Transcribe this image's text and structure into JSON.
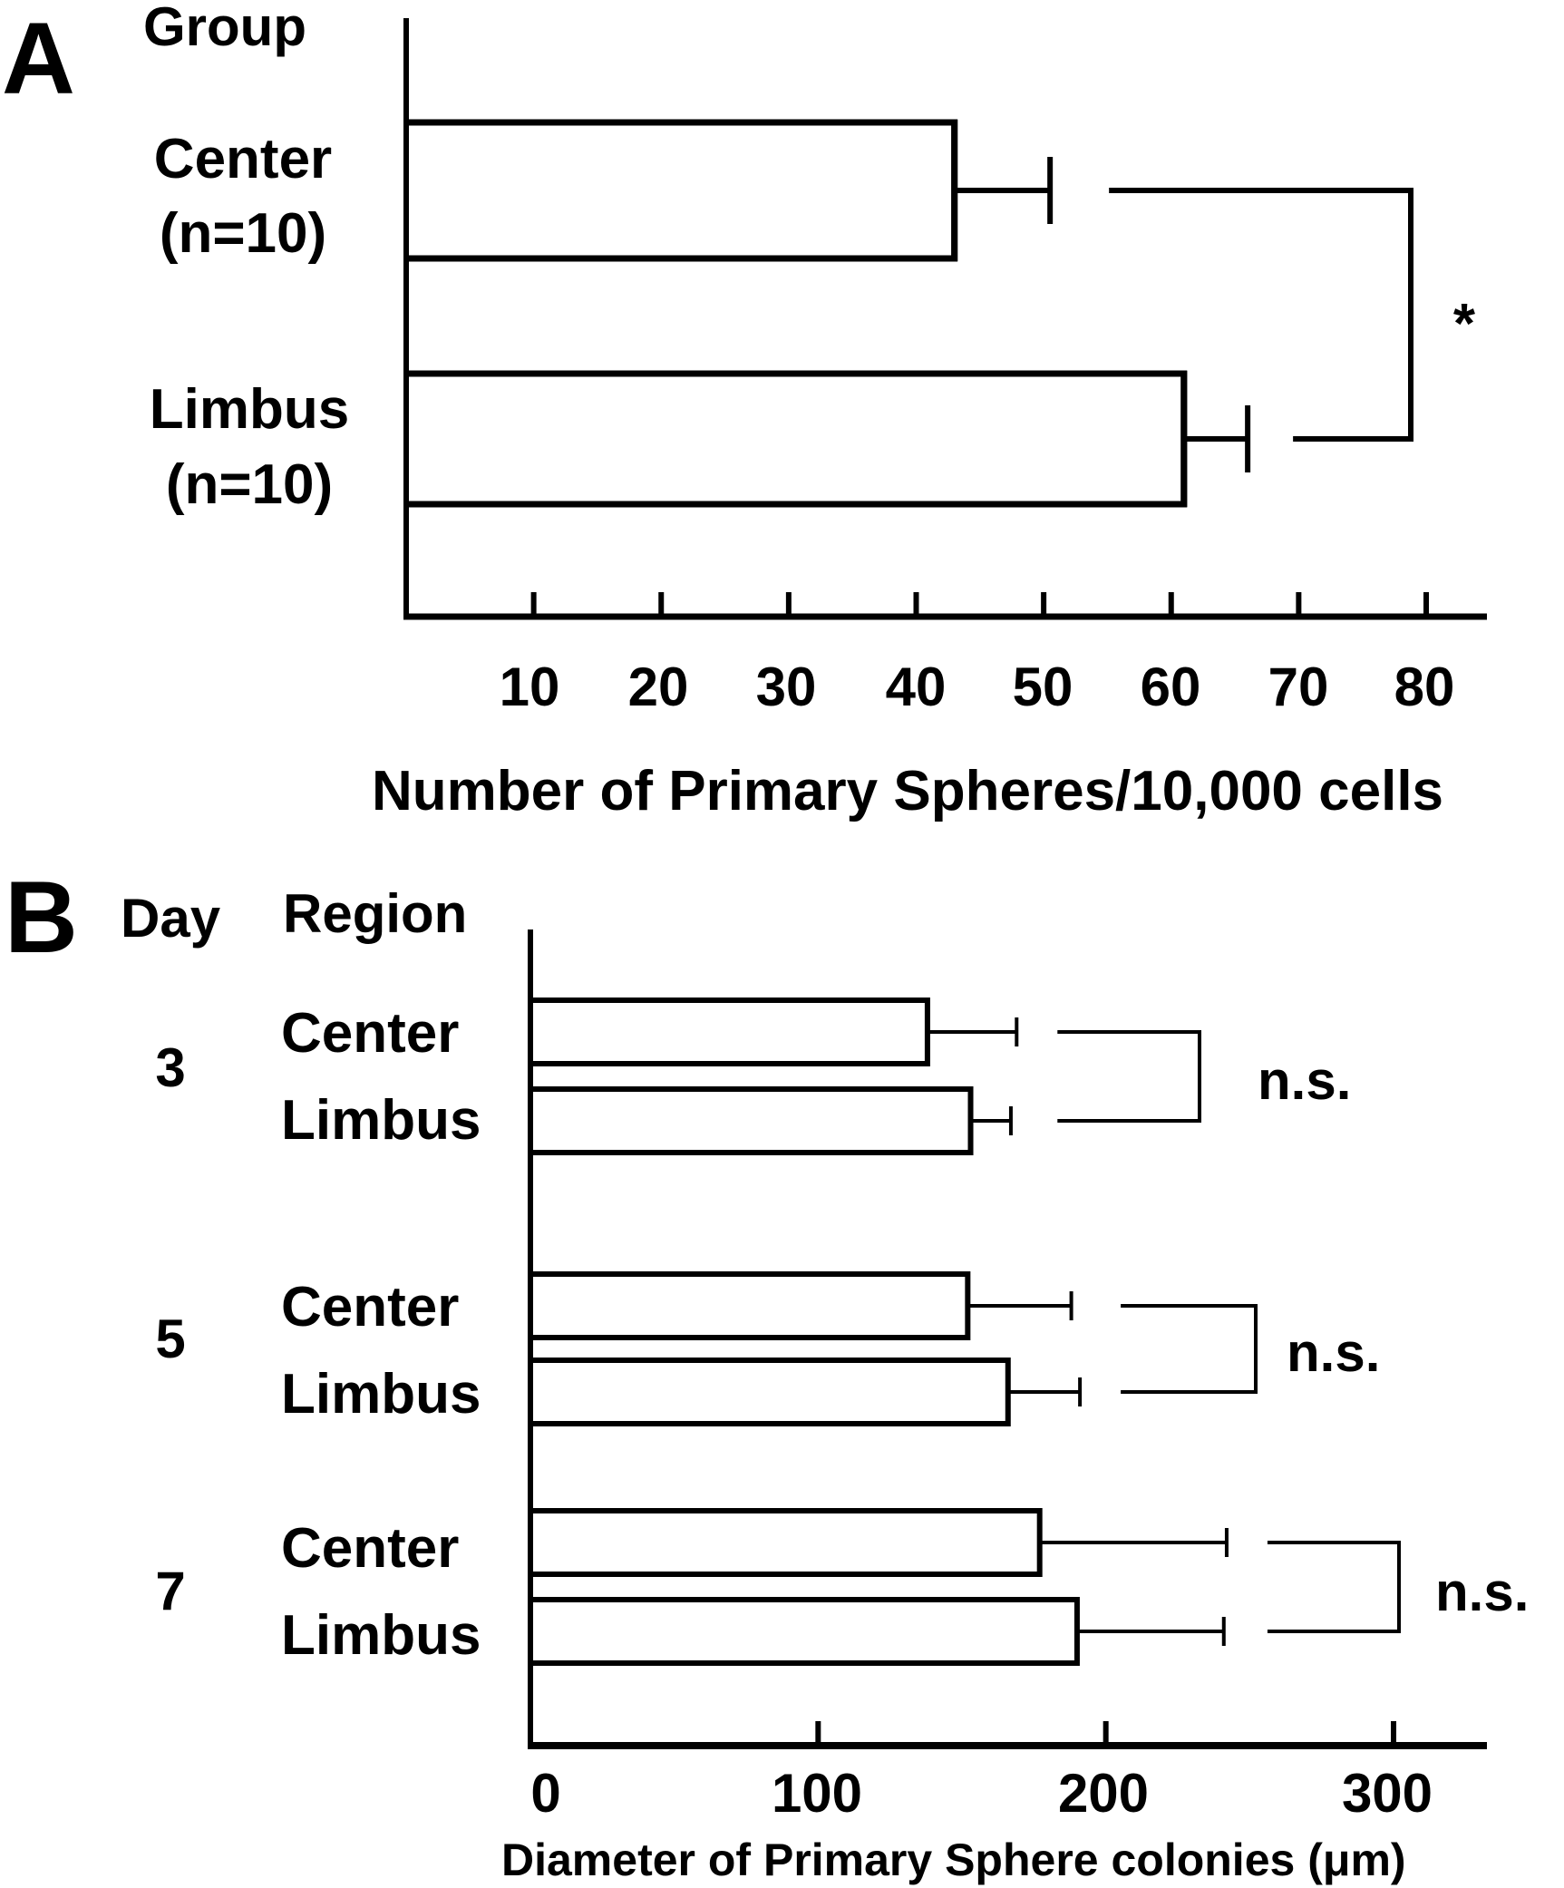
{
  "chart_data": [
    {
      "type": "bar",
      "orientation": "horizontal",
      "panel_label": "A",
      "row_header": "Group",
      "categories": [
        "Center",
        "Limbus"
      ],
      "category_sublabels": [
        "(n=10)",
        "(n=10)"
      ],
      "values": [
        43,
        61
      ],
      "errors": [
        7.5,
        5
      ],
      "xlim": [
        0,
        85
      ],
      "xticks": [
        10,
        20,
        30,
        40,
        50,
        60,
        70,
        80
      ],
      "xtick_labels": [
        "10",
        "20",
        "30",
        "40",
        "50",
        "60",
        "70",
        "80"
      ],
      "xlabel": "Number of Primary Spheres/10,000 cells",
      "significance": [
        {
          "between": [
            "Center",
            "Limbus"
          ],
          "label": "*"
        }
      ],
      "grid": false
    },
    {
      "type": "bar",
      "orientation": "horizontal",
      "panel_label": "B",
      "group_header": "Day",
      "row_header": "Region",
      "groups": [
        {
          "day": "3",
          "regions": [
            "Center",
            "Limbus"
          ],
          "values": [
            138,
            153
          ],
          "errors": [
            31,
            14
          ],
          "significance": "n.s."
        },
        {
          "day": "5",
          "regions": [
            "Center",
            "Limbus"
          ],
          "values": [
            152,
            166
          ],
          "errors": [
            36,
            25
          ],
          "significance": "n.s."
        },
        {
          "day": "7",
          "regions": [
            "Center",
            "Limbus"
          ],
          "values": [
            177,
            190
          ],
          "errors": [
            65,
            51
          ],
          "significance": "n.s."
        }
      ],
      "xlim": [
        0,
        335
      ],
      "xticks": [
        0,
        100,
        200,
        300
      ],
      "xtick_labels": [
        "0",
        "100",
        "200",
        "300"
      ],
      "xlabel": "Diameter of Primary Sphere colonies  (μm)",
      "grid": false
    }
  ]
}
